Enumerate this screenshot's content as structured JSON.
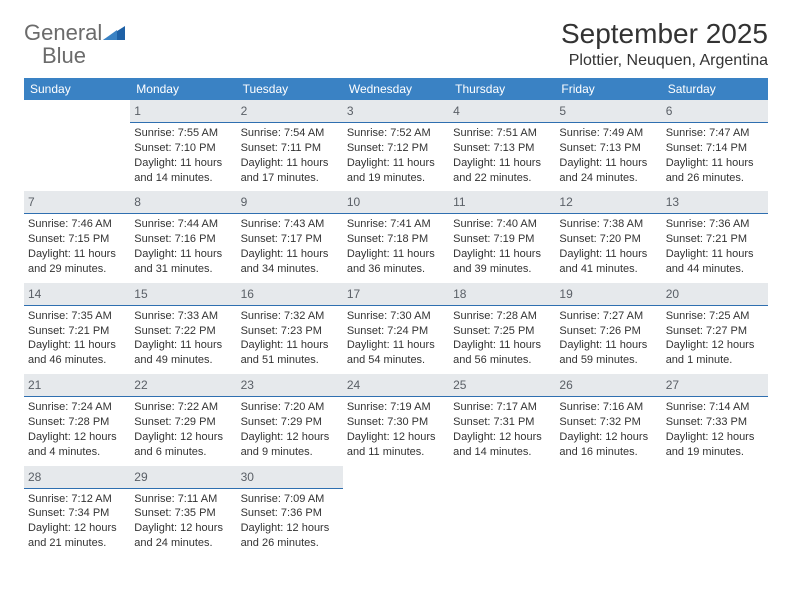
{
  "branding": {
    "word1": "General",
    "word2": "Blue",
    "tri_color_dark": "#1e61a6",
    "tri_color_light": "#3a82c4"
  },
  "header": {
    "month_title": "September 2025",
    "location": "Plottier, Neuquen, Argentina"
  },
  "colors": {
    "header_bg": "#3a82c4",
    "daynum_bg": "#e6e9ec",
    "rule": "#2f6fb0",
    "text": "#333333"
  },
  "day_names": [
    "Sunday",
    "Monday",
    "Tuesday",
    "Wednesday",
    "Thursday",
    "Friday",
    "Saturday"
  ],
  "weeks": [
    [
      null,
      {
        "n": "1",
        "sr": "7:55 AM",
        "ss": "7:10 PM",
        "dl": "11 hours and 14 minutes."
      },
      {
        "n": "2",
        "sr": "7:54 AM",
        "ss": "7:11 PM",
        "dl": "11 hours and 17 minutes."
      },
      {
        "n": "3",
        "sr": "7:52 AM",
        "ss": "7:12 PM",
        "dl": "11 hours and 19 minutes."
      },
      {
        "n": "4",
        "sr": "7:51 AM",
        "ss": "7:13 PM",
        "dl": "11 hours and 22 minutes."
      },
      {
        "n": "5",
        "sr": "7:49 AM",
        "ss": "7:13 PM",
        "dl": "11 hours and 24 minutes."
      },
      {
        "n": "6",
        "sr": "7:47 AM",
        "ss": "7:14 PM",
        "dl": "11 hours and 26 minutes."
      }
    ],
    [
      {
        "n": "7",
        "sr": "7:46 AM",
        "ss": "7:15 PM",
        "dl": "11 hours and 29 minutes."
      },
      {
        "n": "8",
        "sr": "7:44 AM",
        "ss": "7:16 PM",
        "dl": "11 hours and 31 minutes."
      },
      {
        "n": "9",
        "sr": "7:43 AM",
        "ss": "7:17 PM",
        "dl": "11 hours and 34 minutes."
      },
      {
        "n": "10",
        "sr": "7:41 AM",
        "ss": "7:18 PM",
        "dl": "11 hours and 36 minutes."
      },
      {
        "n": "11",
        "sr": "7:40 AM",
        "ss": "7:19 PM",
        "dl": "11 hours and 39 minutes."
      },
      {
        "n": "12",
        "sr": "7:38 AM",
        "ss": "7:20 PM",
        "dl": "11 hours and 41 minutes."
      },
      {
        "n": "13",
        "sr": "7:36 AM",
        "ss": "7:21 PM",
        "dl": "11 hours and 44 minutes."
      }
    ],
    [
      {
        "n": "14",
        "sr": "7:35 AM",
        "ss": "7:21 PM",
        "dl": "11 hours and 46 minutes."
      },
      {
        "n": "15",
        "sr": "7:33 AM",
        "ss": "7:22 PM",
        "dl": "11 hours and 49 minutes."
      },
      {
        "n": "16",
        "sr": "7:32 AM",
        "ss": "7:23 PM",
        "dl": "11 hours and 51 minutes."
      },
      {
        "n": "17",
        "sr": "7:30 AM",
        "ss": "7:24 PM",
        "dl": "11 hours and 54 minutes."
      },
      {
        "n": "18",
        "sr": "7:28 AM",
        "ss": "7:25 PM",
        "dl": "11 hours and 56 minutes."
      },
      {
        "n": "19",
        "sr": "7:27 AM",
        "ss": "7:26 PM",
        "dl": "11 hours and 59 minutes."
      },
      {
        "n": "20",
        "sr": "7:25 AM",
        "ss": "7:27 PM",
        "dl": "12 hours and 1 minute."
      }
    ],
    [
      {
        "n": "21",
        "sr": "7:24 AM",
        "ss": "7:28 PM",
        "dl": "12 hours and 4 minutes."
      },
      {
        "n": "22",
        "sr": "7:22 AM",
        "ss": "7:29 PM",
        "dl": "12 hours and 6 minutes."
      },
      {
        "n": "23",
        "sr": "7:20 AM",
        "ss": "7:29 PM",
        "dl": "12 hours and 9 minutes."
      },
      {
        "n": "24",
        "sr": "7:19 AM",
        "ss": "7:30 PM",
        "dl": "12 hours and 11 minutes."
      },
      {
        "n": "25",
        "sr": "7:17 AM",
        "ss": "7:31 PM",
        "dl": "12 hours and 14 minutes."
      },
      {
        "n": "26",
        "sr": "7:16 AM",
        "ss": "7:32 PM",
        "dl": "12 hours and 16 minutes."
      },
      {
        "n": "27",
        "sr": "7:14 AM",
        "ss": "7:33 PM",
        "dl": "12 hours and 19 minutes."
      }
    ],
    [
      {
        "n": "28",
        "sr": "7:12 AM",
        "ss": "7:34 PM",
        "dl": "12 hours and 21 minutes."
      },
      {
        "n": "29",
        "sr": "7:11 AM",
        "ss": "7:35 PM",
        "dl": "12 hours and 24 minutes."
      },
      {
        "n": "30",
        "sr": "7:09 AM",
        "ss": "7:36 PM",
        "dl": "12 hours and 26 minutes."
      },
      null,
      null,
      null,
      null
    ]
  ],
  "labels": {
    "sunrise_prefix": "Sunrise: ",
    "sunset_prefix": "Sunset: ",
    "daylight_prefix": "Daylight: "
  }
}
